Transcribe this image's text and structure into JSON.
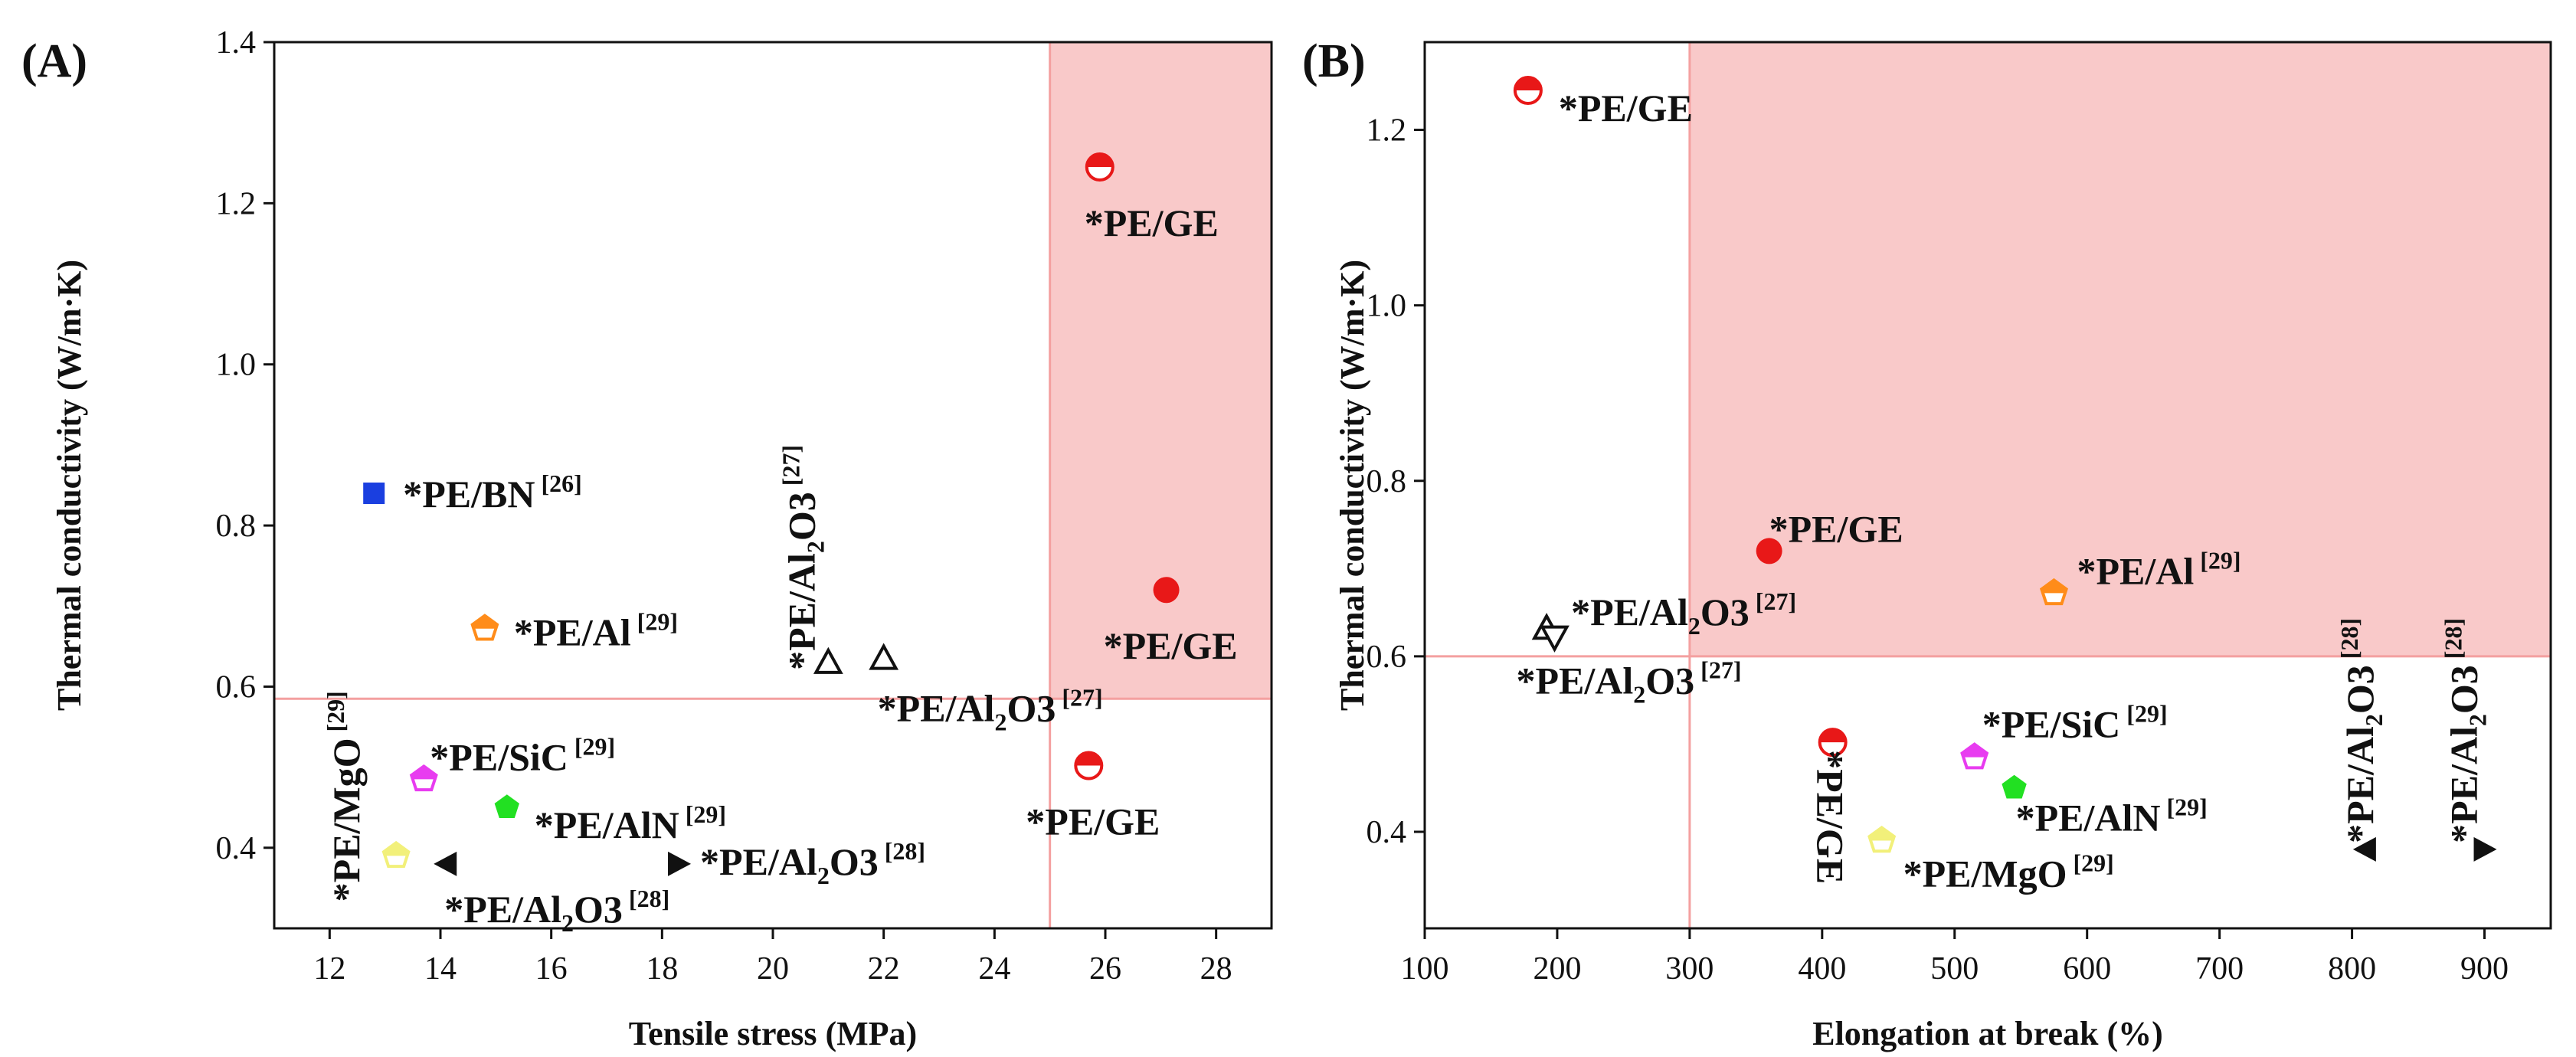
{
  "chart_data": [
    {
      "type": "scatter",
      "panel_label": "(A)",
      "title": "",
      "xlabel": "Tensile stress (MPa)",
      "ylabel": "Thermal conductivity (W/m·K)",
      "xlim": [
        11,
        29
      ],
      "ylim": [
        0.3,
        1.4
      ],
      "xticks": [
        "12",
        "14",
        "16",
        "18",
        "20",
        "22",
        "24",
        "26",
        "28"
      ],
      "yticks": [
        "0.4",
        "0.6",
        "0.8",
        "1.0",
        "1.2",
        "1.4"
      ],
      "highlight_region": {
        "x_from": 25,
        "y_from": 0.585,
        "color": "#f9c9c9"
      },
      "threshold_lines": {
        "x": 25,
        "y": 0.585
      },
      "points": [
        {
          "x": 12.8,
          "y": 0.84,
          "marker": "square",
          "color": "#1a3fe0",
          "name": "PE/BN",
          "label": "*PE/BN",
          "sub": "",
          "label_tail": "",
          "ref": "[26]"
        },
        {
          "x": 14.8,
          "y": 0.672,
          "marker": "pentagon-half",
          "color": "#ff8c1a",
          "name": "PE/Al",
          "label": "*PE/Al",
          "sub": "",
          "label_tail": "",
          "ref": "[29]"
        },
        {
          "x": 21.0,
          "y": 0.63,
          "marker": "triangle-up-open",
          "color": "#111111",
          "name": "PE/Al2O3",
          "label": "*PE/Al",
          "sub": "2",
          "label_tail": "O3",
          "ref": "[27]"
        },
        {
          "x": 22.0,
          "y": 0.635,
          "marker": "triangle-up-open",
          "color": "#111111",
          "name": "PE/Al2O3",
          "label": "*PE/Al",
          "sub": "2",
          "label_tail": "O3",
          "ref": "[27]"
        },
        {
          "x": 25.9,
          "y": 1.245,
          "marker": "circle-half",
          "color": "#e81818",
          "name": "PE/GE",
          "label": "*PE/GE",
          "sub": "",
          "label_tail": "",
          "ref": ""
        },
        {
          "x": 27.1,
          "y": 0.72,
          "marker": "circle",
          "color": "#e81818",
          "name": "PE/GE",
          "label": "*PE/GE",
          "sub": "",
          "label_tail": "",
          "ref": ""
        },
        {
          "x": 25.7,
          "y": 0.502,
          "marker": "circle-half",
          "color": "#e81818",
          "name": "PE/GE",
          "label": "*PE/GE",
          "sub": "",
          "label_tail": "",
          "ref": ""
        },
        {
          "x": 13.7,
          "y": 0.485,
          "marker": "pentagon-half",
          "color": "#e83cf0",
          "name": "PE/SiC",
          "label": "*PE/SiC",
          "sub": "",
          "label_tail": "",
          "ref": "[29]"
        },
        {
          "x": 15.2,
          "y": 0.45,
          "marker": "pentagon",
          "color": "#22e022",
          "name": "PE/AlN",
          "label": "*PE/AlN",
          "sub": "",
          "label_tail": "",
          "ref": "[29]"
        },
        {
          "x": 13.2,
          "y": 0.39,
          "marker": "pentagon-half",
          "color": "#f2f07a",
          "name": "PE/MgO",
          "label": "*PE/MgO",
          "sub": "",
          "label_tail": "",
          "ref": "[29]"
        },
        {
          "x": 14.1,
          "y": 0.38,
          "marker": "triangle-left",
          "color": "#111111",
          "name": "PE/Al2O3",
          "label": "*PE/Al",
          "sub": "2",
          "label_tail": "O3",
          "ref": "[28]"
        },
        {
          "x": 18.3,
          "y": 0.38,
          "marker": "triangle-right",
          "color": "#111111",
          "name": "PE/Al2O3",
          "label": "*PE/Al",
          "sub": "2",
          "label_tail": "O3",
          "ref": "[28]"
        }
      ]
    },
    {
      "type": "scatter",
      "panel_label": "(B)",
      "title": "",
      "xlabel": "Elongation at break (%)",
      "ylabel": "Thermal conductivity (W/m·K)",
      "xlim": [
        100,
        950
      ],
      "ylim": [
        0.29,
        1.3
      ],
      "xticks": [
        "100",
        "200",
        "300",
        "400",
        "500",
        "600",
        "700",
        "800",
        "900"
      ],
      "yticks": [
        "0.4",
        "0.6",
        "0.8",
        "1.0",
        "1.2"
      ],
      "highlight_region": {
        "x_from": 300,
        "y_from": 0.6,
        "color": "#f9c9c9"
      },
      "threshold_lines": {
        "x": 300,
        "y": 0.6
      },
      "points": [
        {
          "x": 178,
          "y": 1.245,
          "marker": "circle-half",
          "color": "#e81818",
          "name": "PE/GE",
          "label": "*PE/GE",
          "sub": "",
          "label_tail": "",
          "ref": ""
        },
        {
          "x": 360,
          "y": 0.72,
          "marker": "circle",
          "color": "#e81818",
          "name": "PE/GE",
          "label": "*PE/GE",
          "sub": "",
          "label_tail": "",
          "ref": ""
        },
        {
          "x": 575,
          "y": 0.672,
          "marker": "pentagon-half",
          "color": "#ff8c1a",
          "name": "PE/Al",
          "label": "*PE/Al",
          "sub": "",
          "label_tail": "",
          "ref": "[29]"
        },
        {
          "x": 192,
          "y": 0.632,
          "marker": "triangle-up-open",
          "color": "#111111",
          "name": "PE/Al2O3",
          "label": "*PE/Al",
          "sub": "2",
          "label_tail": "O3",
          "ref": "[27]"
        },
        {
          "x": 198,
          "y": 0.622,
          "marker": "triangle-down-open",
          "color": "#111111",
          "name": "PE/Al2O3",
          "label": "*PE/Al",
          "sub": "2",
          "label_tail": "O3",
          "ref": "[27]"
        },
        {
          "x": 408,
          "y": 0.502,
          "marker": "circle-half",
          "color": "#e81818",
          "name": "PE/GE",
          "label": "*PE/GE",
          "sub": "",
          "label_tail": "",
          "ref": ""
        },
        {
          "x": 515,
          "y": 0.485,
          "marker": "pentagon-half",
          "color": "#e83cf0",
          "name": "PE/SiC",
          "label": "*PE/SiC",
          "sub": "",
          "label_tail": "",
          "ref": "[29]"
        },
        {
          "x": 545,
          "y": 0.45,
          "marker": "pentagon",
          "color": "#22e022",
          "name": "PE/AlN",
          "label": "*PE/AlN",
          "sub": "",
          "label_tail": "",
          "ref": "[29]"
        },
        {
          "x": 445,
          "y": 0.39,
          "marker": "pentagon-half",
          "color": "#f2f07a",
          "name": "PE/MgO",
          "label": "*PE/MgO",
          "sub": "",
          "label_tail": "",
          "ref": "[29]"
        },
        {
          "x": 810,
          "y": 0.38,
          "marker": "triangle-left",
          "color": "#111111",
          "name": "PE/Al2O3",
          "label": "*PE/Al",
          "sub": "2",
          "label_tail": "O3",
          "ref": "[28]"
        },
        {
          "x": 900,
          "y": 0.38,
          "marker": "triangle-right",
          "color": "#111111",
          "name": "PE/Al2O3",
          "label": "*PE/Al",
          "sub": "2",
          "label_tail": "O3",
          "ref": "[28]"
        }
      ]
    }
  ]
}
